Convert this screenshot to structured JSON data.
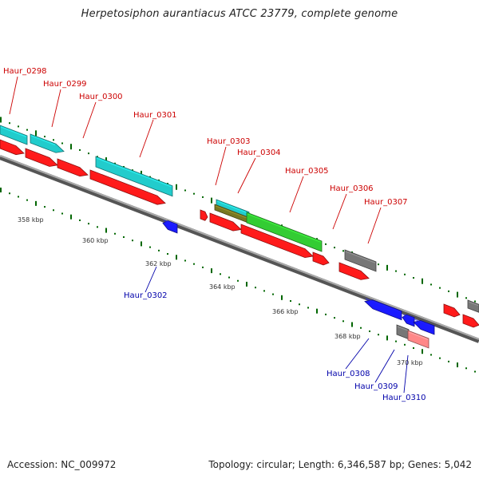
{
  "title": "Herpetosiphon aurantiacus ATCC 23779, complete genome",
  "footer": {
    "accession": "Accession: NC_009972",
    "summary": "Topology: circular; Length: 6,346,587 bp; Genes: 5,042"
  },
  "colors": {
    "forward_label": "#cc0000",
    "reverse_label": "#0000aa",
    "cds_red": "#ff1a1a",
    "cds_cyan": "#22cccc",
    "cds_green": "#33cc33",
    "cds_gray": "#777777",
    "cds_blue": "#1a1aff",
    "cds_pink": "#ff8888",
    "cds_olive": "#777722",
    "dot": "#006600",
    "backbone": "#888888"
  },
  "kbp_labels": [
    "358 kbp",
    "360 kbp",
    "362 kbp",
    "364 kbp",
    "366 kbp",
    "368 kbp",
    "370 kbp"
  ],
  "gene_labels": [
    {
      "text": "Haur_0298",
      "strand": "forward"
    },
    {
      "text": "Haur_0299",
      "strand": "forward"
    },
    {
      "text": "Haur_0300",
      "strand": "forward"
    },
    {
      "text": "Haur_0301",
      "strand": "forward"
    },
    {
      "text": "Haur_0303",
      "strand": "forward"
    },
    {
      "text": "Haur_0304",
      "strand": "forward"
    },
    {
      "text": "Haur_0305",
      "strand": "forward"
    },
    {
      "text": "Haur_0306",
      "strand": "forward"
    },
    {
      "text": "Haur_0307",
      "strand": "forward"
    },
    {
      "text": "Haur_0302",
      "strand": "reverse"
    },
    {
      "text": "Haur_0308",
      "strand": "reverse"
    },
    {
      "text": "Haur_0309",
      "strand": "reverse"
    },
    {
      "text": "Haur_0310",
      "strand": "reverse"
    }
  ]
}
